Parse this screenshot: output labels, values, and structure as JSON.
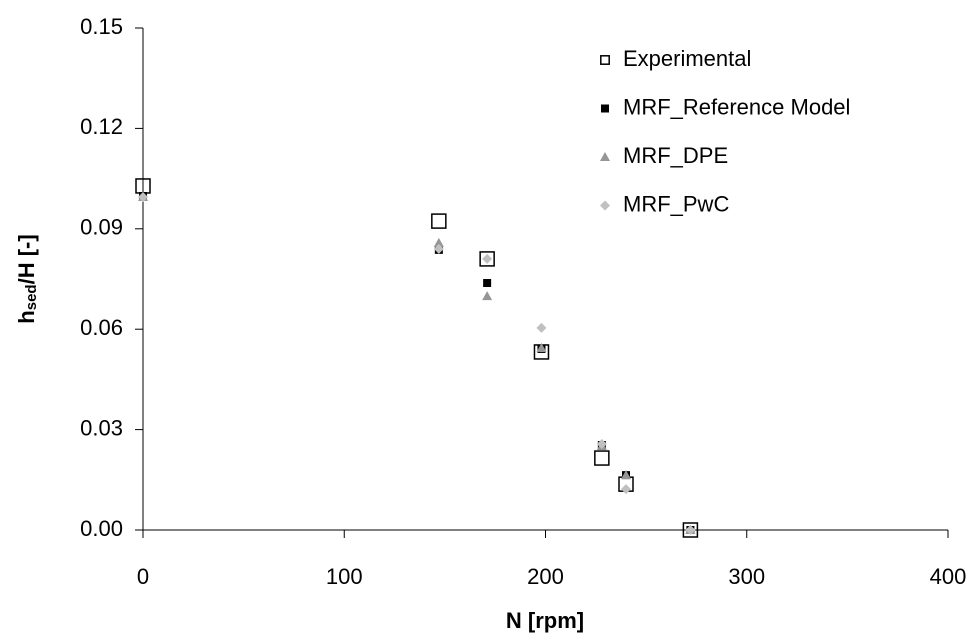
{
  "chart_data": {
    "type": "scatter",
    "x_label": "N [rpm]",
    "y_label": {
      "main": "h",
      "sub": "sed",
      "rest": "/H [-]"
    },
    "xlim": [
      0,
      400
    ],
    "xticks": [
      0,
      100,
      200,
      300,
      400
    ],
    "ylim": [
      0,
      0.15
    ],
    "yticks": [
      {
        "value": 0,
        "label": "0.00"
      },
      {
        "value": 0.03,
        "label": "0.03"
      },
      {
        "value": 0.06,
        "label": "0.06"
      },
      {
        "value": 0.09,
        "label": "0.09"
      },
      {
        "value": 0.12,
        "label": "0.12"
      },
      {
        "value": 0.15,
        "label": "0.15"
      }
    ],
    "grid": false,
    "legend": "top-right",
    "series": [
      {
        "name": "Experimental",
        "marker": "open-square",
        "color": "#000000",
        "x": [
          0,
          147,
          171,
          198,
          228,
          240,
          272
        ],
        "values": [
          0.1028,
          0.0923,
          0.081,
          0.0532,
          0.0215,
          0.0137,
          0
        ]
      },
      {
        "name": "MRF_Reference Model",
        "marker": "square",
        "color": "#000000",
        "x": [
          0,
          147,
          171,
          198,
          228,
          240,
          272
        ],
        "values": [
          0.0998,
          0.0837,
          0.0738,
          0.0541,
          0.0254,
          0.0164,
          0
        ]
      },
      {
        "name": "MRF_DPE",
        "marker": "triangle",
        "color": "#969696",
        "x": [
          0,
          147,
          171,
          198,
          228,
          240,
          272
        ],
        "values": [
          0.0995,
          0.0858,
          0.0699,
          0.0544,
          0.0251,
          0.0164,
          0
        ]
      },
      {
        "name": "MRF_PwC",
        "marker": "diamond",
        "color": "#c0c0c0",
        "x": [
          0,
          147,
          171,
          198,
          228,
          240,
          272
        ],
        "values": [
          0.0995,
          0.084,
          0.081,
          0.0604,
          0.0257,
          0.0122,
          0
        ]
      }
    ]
  }
}
